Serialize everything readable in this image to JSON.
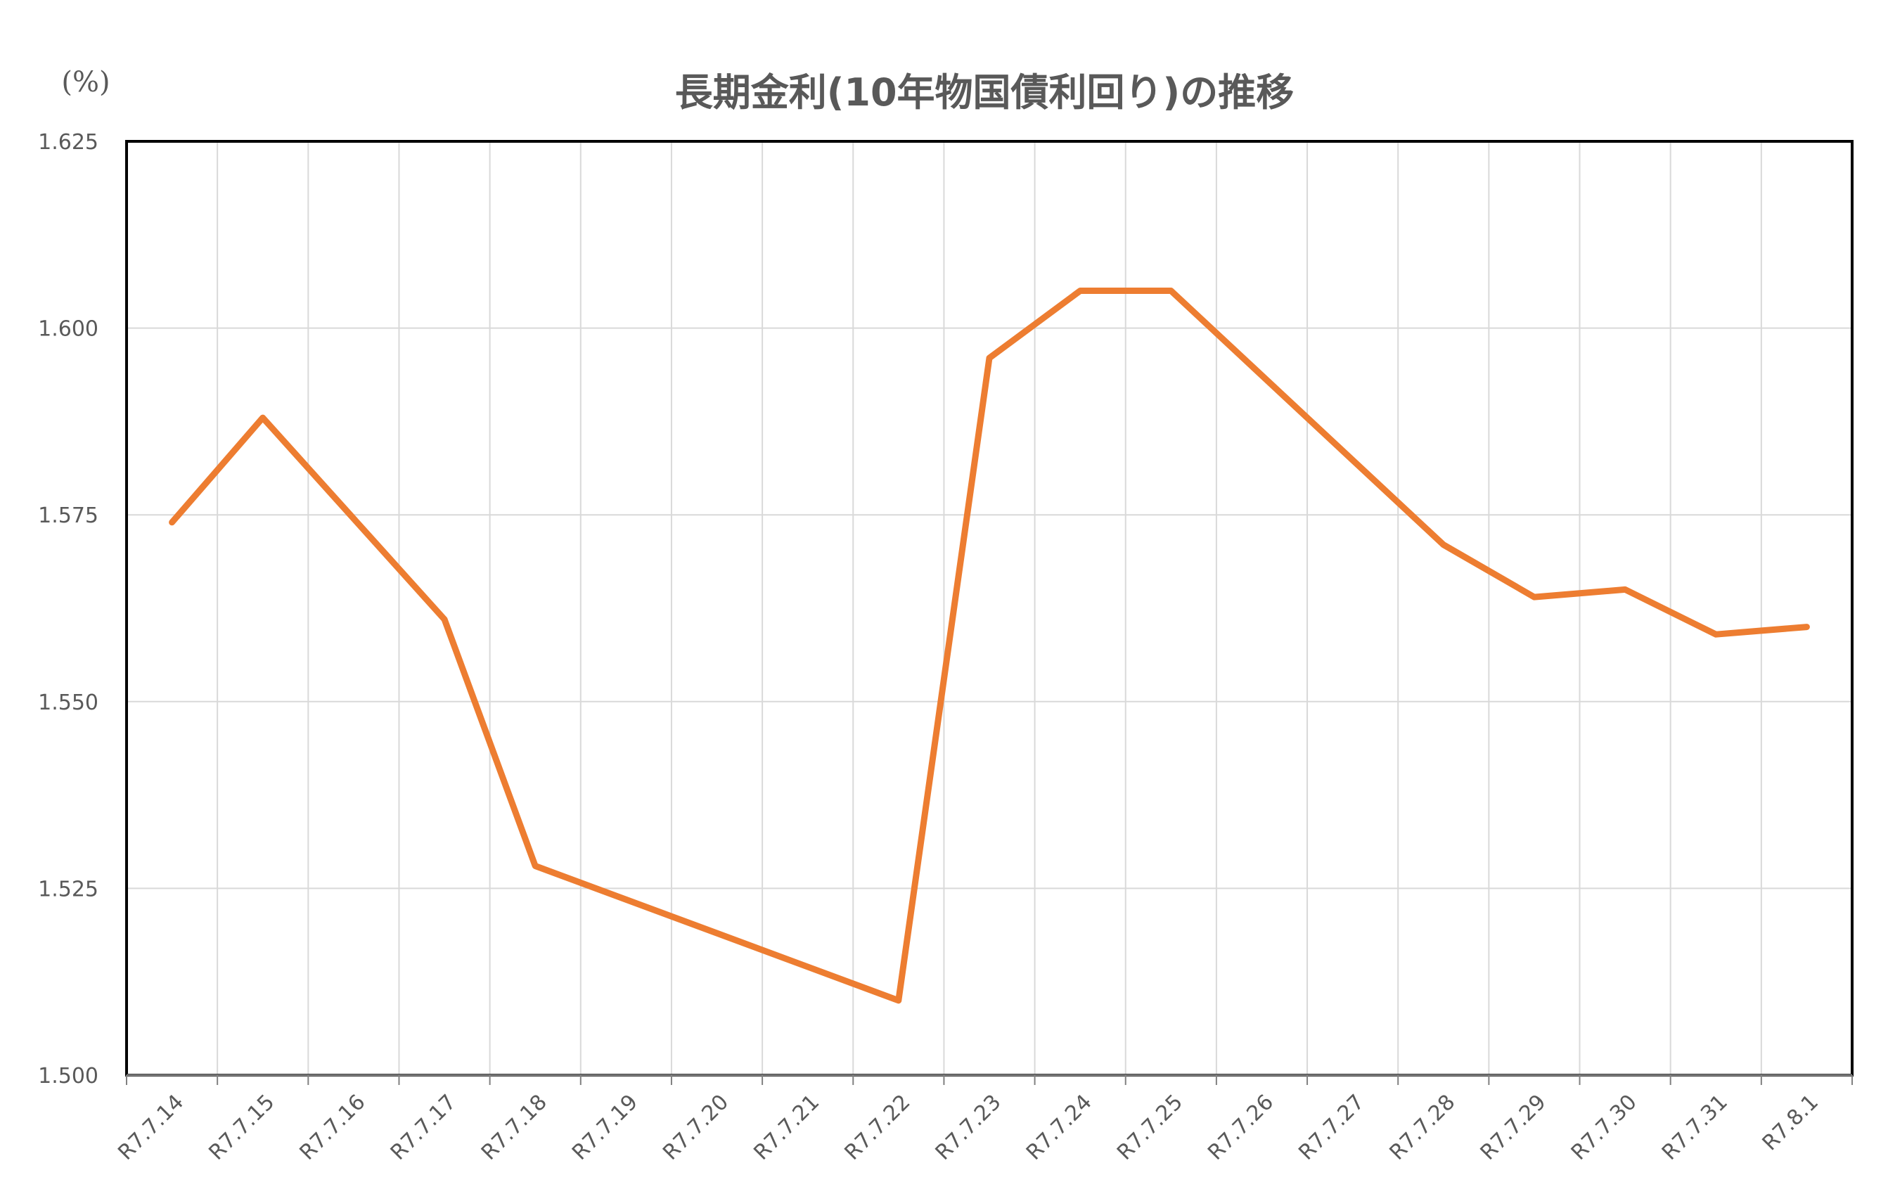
{
  "chart_data": {
    "type": "line",
    "title": "長期金利(10年物国債利回り)の推移",
    "ylabel": "(%)",
    "xlabel": "",
    "categories": [
      "R7.7.14",
      "R7.7.15",
      "R7.7.16",
      "R7.7.17",
      "R7.7.18",
      "R7.7.19",
      "R7.7.20",
      "R7.7.21",
      "R7.7.22",
      "R7.7.23",
      "R7.7.24",
      "R7.7.25",
      "R7.7.26",
      "R7.7.27",
      "R7.7.28",
      "R7.7.29",
      "R7.7.30",
      "R7.7.31",
      "R7.8.1"
    ],
    "yticks": [
      "1.500",
      "1.525",
      "1.550",
      "1.575",
      "1.600",
      "1.625"
    ],
    "ylim": [
      1.5,
      1.625
    ],
    "grid": true,
    "legend": "none",
    "series": [
      {
        "color": "#ED7D31",
        "points": [
          {
            "x": "R7.7.14",
            "y": 1.574
          },
          {
            "x": "R7.7.15",
            "y": 1.588
          },
          {
            "x": "R7.7.17",
            "y": 1.561
          },
          {
            "x": "R7.7.18",
            "y": 1.528
          },
          {
            "x": "R7.7.22",
            "y": 1.51
          },
          {
            "x": "R7.7.23",
            "y": 1.596
          },
          {
            "x": "R7.7.24",
            "y": 1.605
          },
          {
            "x": "R7.7.25",
            "y": 1.605
          },
          {
            "x": "R7.7.28",
            "y": 1.571
          },
          {
            "x": "R7.7.29",
            "y": 1.564
          },
          {
            "x": "R7.7.30",
            "y": 1.565
          },
          {
            "x": "R7.7.31",
            "y": 1.559
          },
          {
            "x": "R7.8.1",
            "y": 1.56
          }
        ]
      }
    ]
  }
}
